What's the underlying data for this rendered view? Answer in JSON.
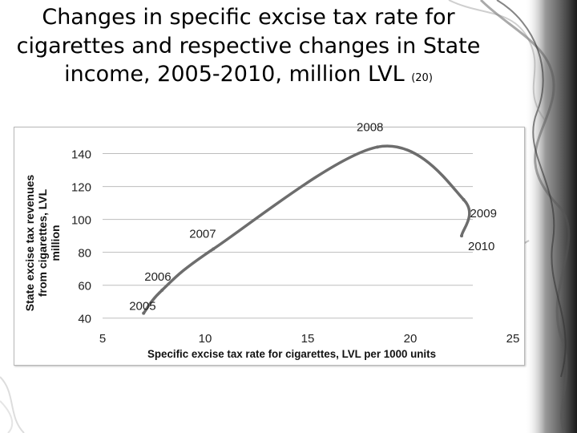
{
  "slide": {
    "title": "Changes in specific excise tax rate for cigarettes and respective changes in State income, 2005-2010, million LVL",
    "title_ref": "(20)"
  },
  "chart_data": {
    "type": "line",
    "title": "",
    "xlabel": "Specific excise tax rate for cigarettes, LVL per 1000 units",
    "ylabel": "State excise tax revenues from cigarettes, LVL million",
    "ylabel_lines": [
      "State excise tax revenues",
      "from cigarettes, LVL",
      "million"
    ],
    "xlim": [
      5,
      25
    ],
    "ylim": [
      35,
      150
    ],
    "x_ticks": [
      5,
      10,
      15,
      20,
      25
    ],
    "y_ticks": [
      40,
      60,
      80,
      100,
      120,
      140
    ],
    "grid": "horizontal",
    "line_color": "#6d6d6d",
    "series": [
      {
        "name": "State income",
        "points": [
          {
            "x": 7.0,
            "y": 43,
            "label": "2005"
          },
          {
            "x": 7.9,
            "y": 57,
            "label": "2006"
          },
          {
            "x": 10.4,
            "y": 82,
            "label": "2007"
          },
          {
            "x": 18.4,
            "y": 144,
            "label": "2008"
          },
          {
            "x": 22.6,
            "y": 112,
            "label": "2009"
          },
          {
            "x": 22.5,
            "y": 90,
            "label": "2010"
          }
        ]
      }
    ]
  }
}
